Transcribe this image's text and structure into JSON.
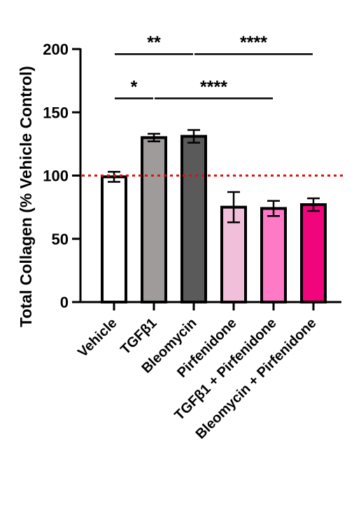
{
  "chart_data": {
    "type": "bar",
    "ylabel": "Total Collagen (% Vehicle Control)",
    "ylim": [
      0,
      200
    ],
    "yticks": [
      0,
      50,
      100,
      150,
      200
    ],
    "categories": [
      "Vehicle",
      "TGFβ1",
      "Bleomycin",
      "Pirfenidone",
      "TGFβ1 + Pirfenidone",
      "Bleomycin + Pirfenidone"
    ],
    "values": [
      99,
      130,
      131,
      75,
      74,
      77
    ],
    "errors": [
      4,
      3,
      5,
      12,
      6,
      5
    ],
    "bar_colors": [
      "#ffffff",
      "#a09b9b",
      "#5a5a5a",
      "#f2bfdb",
      "#ff7ac6",
      "#f0057d"
    ],
    "reference_line": {
      "value": 100,
      "color": "#e01010",
      "style": "dotted"
    },
    "significance": [
      {
        "from": 0,
        "to": 1,
        "y": 161,
        "label": "*"
      },
      {
        "from": 1,
        "to": 4,
        "y": 161,
        "label": "****"
      },
      {
        "from": 0,
        "to": 2,
        "y": 196,
        "label": "**"
      },
      {
        "from": 2,
        "to": 5,
        "y": 196,
        "label": "****"
      }
    ]
  }
}
